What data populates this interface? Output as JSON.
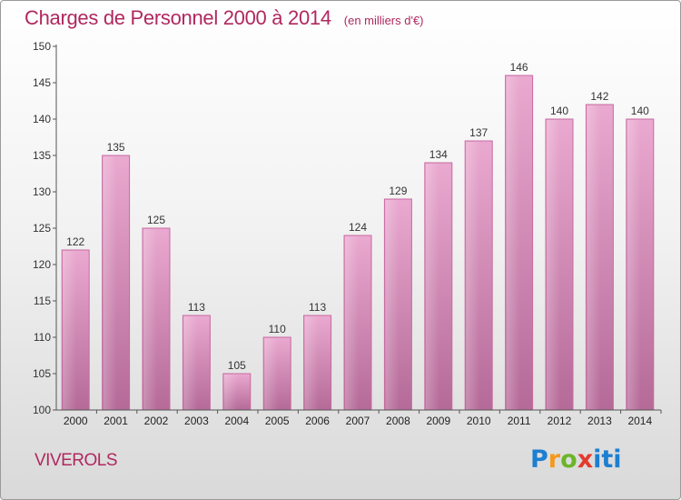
{
  "title": "Charges de Personnel 2000 à 2014",
  "subtitle": "(en milliers d'€)",
  "city": "VIVEROLS",
  "logo": {
    "p": "P",
    "r": "r",
    "o": "o",
    "x": "x",
    "i1": "i",
    "t": "t",
    "i2": "i"
  },
  "colors": {
    "bar": "#d77fb0",
    "bar_edge": "#c86aa1",
    "title": "#b0285e",
    "axis": "#555555"
  },
  "chart_data": {
    "type": "bar",
    "categories": [
      "2000",
      "2001",
      "2002",
      "2003",
      "2004",
      "2005",
      "2006",
      "2007",
      "2008",
      "2009",
      "2010",
      "2011",
      "2012",
      "2013",
      "2014"
    ],
    "values": [
      122,
      135,
      125,
      113,
      105,
      110,
      113,
      124,
      129,
      134,
      137,
      146,
      140,
      142,
      140
    ],
    "ylim": [
      100,
      150
    ],
    "yticks": [
      100,
      105,
      110,
      115,
      120,
      125,
      130,
      135,
      140,
      145,
      150
    ],
    "grid": false
  }
}
